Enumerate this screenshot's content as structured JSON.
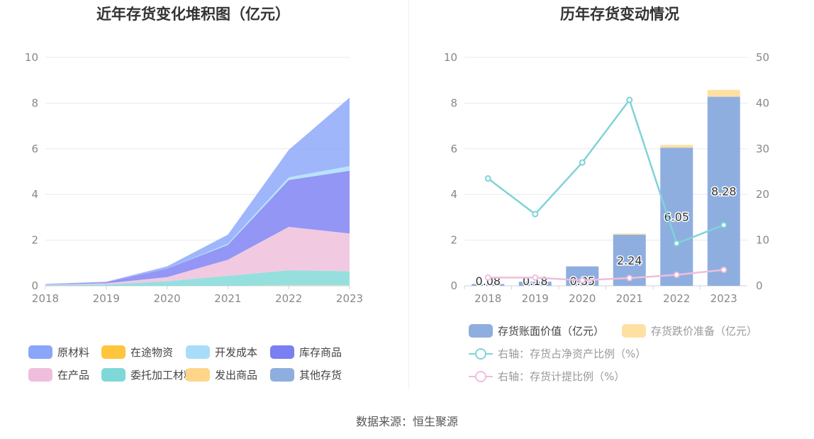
{
  "source": "数据来源：恒生聚源",
  "chart_data": [
    {
      "type": "area",
      "stacked": true,
      "title": "近年存货变化堆积图（亿元）",
      "x": [
        "2018",
        "2019",
        "2020",
        "2021",
        "2022",
        "2023"
      ],
      "ylim": [
        0,
        10
      ],
      "yticks": [
        "0",
        "2",
        "4",
        "6",
        "8",
        "10"
      ],
      "legend_position": "bottom",
      "series": [
        {
          "name": "原材料",
          "color": "#8aa6fa",
          "values": [
            0.01,
            0.02,
            0.1,
            0.4,
            1.2,
            3.0
          ]
        },
        {
          "name": "在途物资",
          "color": "#ffc53d",
          "values": [
            0.0,
            0.0,
            0.0,
            0.0,
            0.0,
            0.0
          ]
        },
        {
          "name": "开发成本",
          "color": "#a8ddfa",
          "values": [
            0.0,
            0.0,
            0.0,
            0.05,
            0.12,
            0.2
          ]
        },
        {
          "name": "库存商品",
          "color": "#7b7ff2",
          "values": [
            0.02,
            0.05,
            0.37,
            0.65,
            2.05,
            2.75
          ]
        },
        {
          "name": "在产品",
          "color": "#eebedc",
          "values": [
            0.02,
            0.05,
            0.18,
            0.7,
            1.9,
            1.65
          ]
        },
        {
          "name": "委托加工材料",
          "color": "#7fd8d8",
          "values": [
            0.03,
            0.06,
            0.2,
            0.44,
            0.66,
            0.62
          ]
        },
        {
          "name": "发出商品",
          "color": "#ffd58a",
          "values": [
            0.0,
            0.0,
            0.0,
            0.0,
            0.02,
            0.02
          ]
        },
        {
          "name": "其他存货",
          "color": "#8faee0",
          "values": [
            0.0,
            0.0,
            0.0,
            0.0,
            0.0,
            0.0
          ]
        }
      ]
    },
    {
      "type": "bar",
      "stacked": true,
      "title": "历年存货变动情况",
      "categories": [
        "2018",
        "2019",
        "2020",
        "2021",
        "2022",
        "2023"
      ],
      "ylim": [
        0,
        10
      ],
      "yticks": [
        "0",
        "2",
        "4",
        "6",
        "8",
        "10"
      ],
      "y2lim": [
        0,
        50
      ],
      "y2ticks": [
        "0",
        "10",
        "20",
        "30",
        "40",
        "50"
      ],
      "legend_position": "bottom",
      "bar_series": [
        {
          "name": "存货账面价值（亿元）",
          "color": "#8faee0",
          "values": [
            0.08,
            0.18,
            0.85,
            2.24,
            6.05,
            8.28
          ],
          "labels": [
            "0.08",
            "0.18",
            "0.85",
            "2.24",
            "6.05",
            "8.28"
          ]
        },
        {
          "name": "存货跌价准备（亿元）",
          "color": "#ffe0a3",
          "values": [
            0.0,
            0.0,
            0.0,
            0.05,
            0.12,
            0.3
          ]
        }
      ],
      "line_series": [
        {
          "name": "右轴：存货占净资产比例（%）",
          "color": "#7fd3d8",
          "values": [
            23.5,
            15.7,
            27.0,
            40.7,
            9.3,
            13.3
          ]
        },
        {
          "name": "右轴：存货计提比例（%）",
          "color": "#eebedc",
          "values": [
            1.8,
            1.8,
            1.2,
            1.7,
            2.4,
            3.5
          ]
        }
      ]
    }
  ]
}
